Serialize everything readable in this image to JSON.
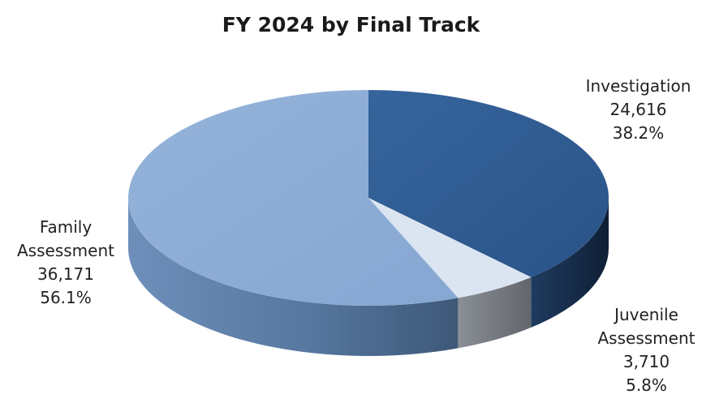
{
  "chart_data": {
    "type": "pie",
    "title": "FY 2024 by Final Track",
    "legend": "none",
    "slices": [
      {
        "label_lines": [
          "Investigation"
        ],
        "value": 24616,
        "value_label": "24,616",
        "percent_label": "38.2%",
        "color": "#2f5d94",
        "side_color": "#18304f"
      },
      {
        "label_lines": [
          "Juvenile",
          "Assessment"
        ],
        "value": 3710,
        "value_label": "3,710",
        "percent_label": "5.8%",
        "color": "#dbe4f1",
        "side_color": "#767c85"
      },
      {
        "label_lines": [
          "Family",
          "Assessment"
        ],
        "value": 36171,
        "value_label": "36,171",
        "percent_label": "56.1%",
        "color": "#8eafd8",
        "side_color": "#5f82ae"
      }
    ]
  }
}
